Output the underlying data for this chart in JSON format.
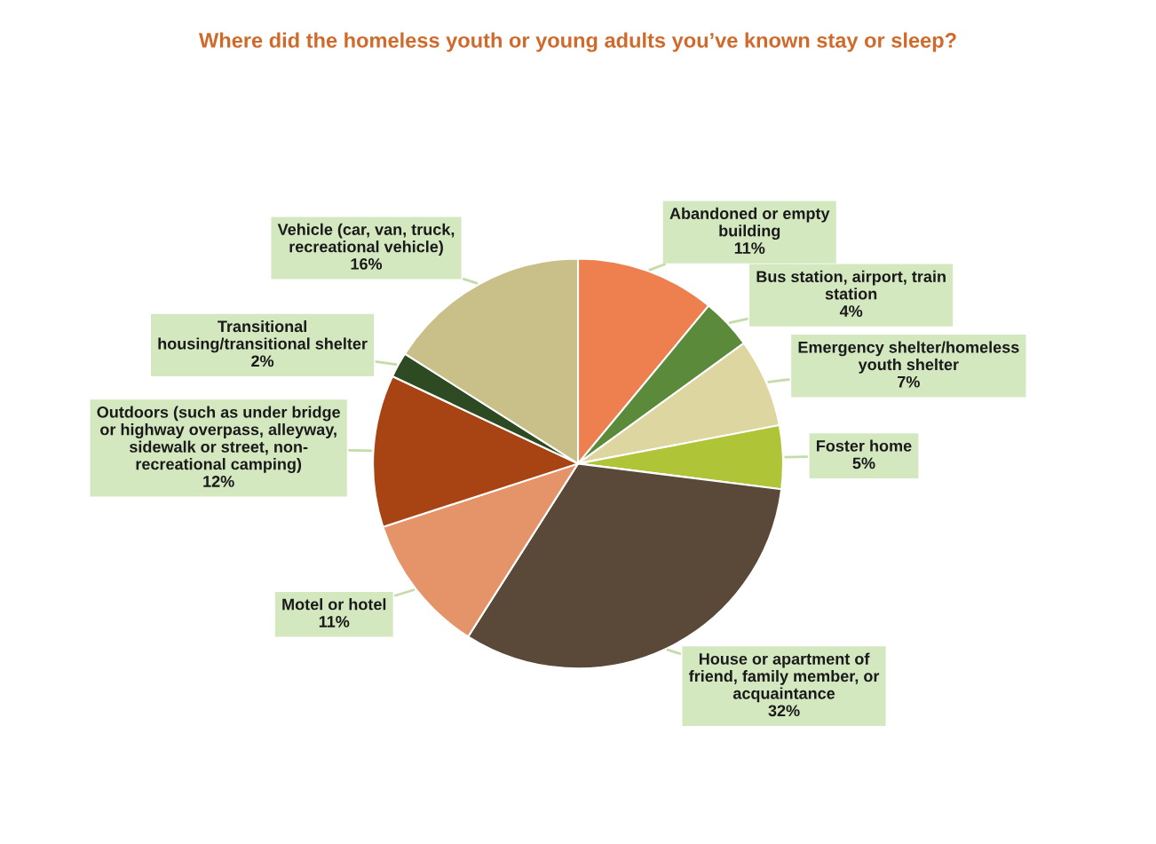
{
  "chart_data": {
    "type": "pie",
    "title": "Where did the homeless youth or young adults you’ve known stay or sleep?",
    "categories": [
      "Abandoned or empty\nbuilding",
      "Bus station, airport, train\nstation",
      "Emergency shelter/homeless\nyouth shelter",
      "Foster home",
      "House or apartment of\nfriend, family member, or\nacquaintance",
      "Motel or hotel",
      "Outdoors (such as under bridge\nor highway overpass, alleyway,\nsidewalk or street, non-\nrecreational camping)",
      "Transitional\nhousing/transitional shelter",
      "Vehicle (car, van, truck,\nrecreational vehicle)"
    ],
    "values": [
      11,
      4,
      7,
      5,
      32,
      11,
      12,
      2,
      16
    ],
    "value_labels": [
      "11%",
      "4%",
      "7%",
      "5%",
      "32%",
      "11%",
      "12%",
      "2%",
      "16%"
    ],
    "colors": [
      "#ee8050",
      "#5a8a3a",
      "#ddd6a0",
      "#b0c438",
      "#5a4838",
      "#e49468",
      "#a84414",
      "#2e4a22",
      "#c8c088"
    ]
  }
}
